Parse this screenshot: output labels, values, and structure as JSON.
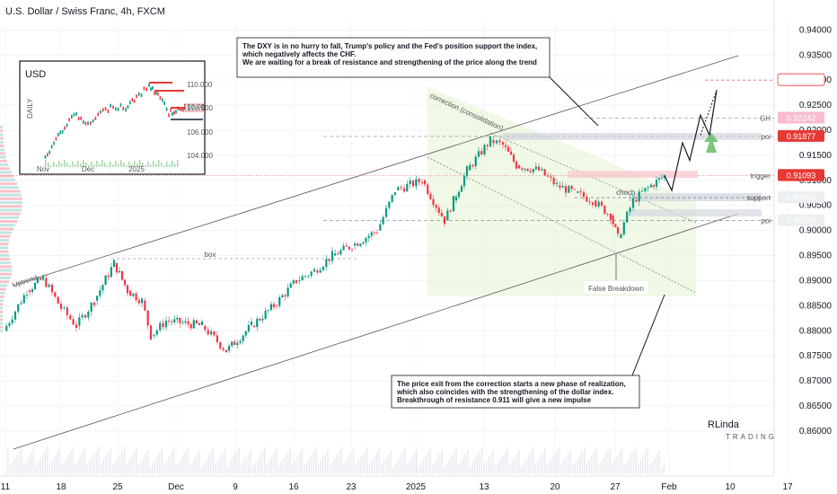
{
  "title": "U.S. Dollar / Swiss Franc, 4h, FXCM",
  "colors": {
    "up": "#089981",
    "down": "#f23645",
    "price_red": "#e53935",
    "grid": "#f0f3fa"
  },
  "annotations": {
    "top": [
      "The DXY is in no hurry to fall, Trump's policy and the Fed's position support the index,",
      "which negatively affects the CHF.",
      "We are waiting for a break of resistance and strengthening of the price along the trend"
    ],
    "bottom": [
      "The price exit from the correction starts a new phase of realization,",
      "which also coincides with the strengthening of the dollar index.",
      "Breakthrough of resistance 0.911 will give a new impulse"
    ],
    "correction": "correction (consolidation)",
    "uptrend": "Uptrend",
    "box": "box",
    "choch": "choch",
    "false_breakdown": "False Breakdown"
  },
  "levels": [
    {
      "name": "GH",
      "price": 0.92242,
      "label": "0.92242",
      "style": "dash"
    },
    {
      "name": "poi",
      "price": 0.91877,
      "label": "0.91877",
      "style": "dash"
    },
    {
      "name": "trigger",
      "price": 0.91093,
      "label": "0.91093",
      "style": "dot"
    },
    {
      "name": "support",
      "price": 0.90655,
      "label": "0.90655",
      "style": "zone"
    },
    {
      "name": "poi",
      "price": 0.90198,
      "label": "0.90198",
      "style": "dash"
    }
  ],
  "price_tags": [
    {
      "label": "0.93000",
      "price": 0.93,
      "kind": "outline"
    },
    {
      "label": "0.92242",
      "price": 0.92242,
      "kind": "pink"
    },
    {
      "label": "0.91877",
      "price": 0.91877,
      "kind": "red"
    },
    {
      "label": "0.91100",
      "price": 0.911,
      "kind": "red"
    },
    {
      "label": "0.91093",
      "price": 0.91093,
      "kind": "red"
    },
    {
      "label": "0.90655",
      "price": 0.90655,
      "kind": "grey"
    },
    {
      "label": "0.90198",
      "price": 0.90198,
      "kind": "dark"
    }
  ],
  "inset": {
    "label": "USD",
    "period": "DAILY",
    "y_ticks": [
      "110.000",
      "108.000",
      "106.000",
      "104.000"
    ],
    "x_ticks": [
      "Nov",
      "Dec",
      "2025"
    ],
    "current": "107.99"
  },
  "logo": {
    "line1": "RLinda",
    "line2": "TRADING"
  },
  "chart_data": {
    "type": "candlestick",
    "title": "U.S. Dollar / Swiss Franc, 4h, FXCM",
    "x_ticks": [
      "11",
      "18",
      "25",
      "Dec",
      "9",
      "16",
      "23",
      "2025",
      "13",
      "20",
      "27",
      "Feb",
      "10",
      "17"
    ],
    "y_ticks": [
      "0.94000",
      "0.93500",
      "0.93000",
      "0.92500",
      "0.92000",
      "0.91500",
      "0.91000",
      "0.90500",
      "0.90000",
      "0.89500",
      "0.89000",
      "0.88500",
      "0.88000",
      "0.87500",
      "0.87000",
      "0.86500",
      "0.86000"
    ],
    "ylim": [
      0.8555,
      0.9415
    ],
    "path_points": [
      {
        "x": "11",
        "y": 0.88
      },
      {
        "x": "13",
        "y": 0.888
      },
      {
        "x": "15",
        "y": 0.8905
      },
      {
        "x": "18",
        "y": 0.8845
      },
      {
        "x": "20",
        "y": 0.881
      },
      {
        "x": "22",
        "y": 0.886
      },
      {
        "x": "25",
        "y": 0.8935
      },
      {
        "x": "27",
        "y": 0.888
      },
      {
        "x": "29",
        "y": 0.886
      },
      {
        "x": "Dec",
        "y": 0.879
      },
      {
        "x": "3",
        "y": 0.882
      },
      {
        "x": "5",
        "y": 0.881
      },
      {
        "x": "9",
        "y": 0.876
      },
      {
        "x": "11",
        "y": 0.881
      },
      {
        "x": "13",
        "y": 0.885
      },
      {
        "x": "16",
        "y": 0.89
      },
      {
        "x": "18",
        "y": 0.892
      },
      {
        "x": "20",
        "y": 0.895
      },
      {
        "x": "23",
        "y": 0.897
      },
      {
        "x": "27",
        "y": 0.9
      },
      {
        "x": "30",
        "y": 0.908
      },
      {
        "x": "2025",
        "y": 0.91
      },
      {
        "x": "3",
        "y": 0.902
      },
      {
        "x": "6",
        "y": 0.906
      },
      {
        "x": "9",
        "y": 0.912
      },
      {
        "x": "12",
        "y": 0.918
      },
      {
        "x": "13",
        "y": 0.917
      },
      {
        "x": "15",
        "y": 0.913
      },
      {
        "x": "17",
        "y": 0.912
      },
      {
        "x": "20",
        "y": 0.909
      },
      {
        "x": "22",
        "y": 0.9075
      },
      {
        "x": "24",
        "y": 0.906
      },
      {
        "x": "26",
        "y": 0.903
      },
      {
        "x": "27",
        "y": 0.8985
      },
      {
        "x": "28",
        "y": 0.906
      },
      {
        "x": "30",
        "y": 0.909
      },
      {
        "x": "Feb",
        "y": 0.9109
      }
    ],
    "forecast": [
      0.9109,
      0.908,
      0.9175,
      0.914,
      0.923,
      0.919,
      0.928
    ]
  }
}
